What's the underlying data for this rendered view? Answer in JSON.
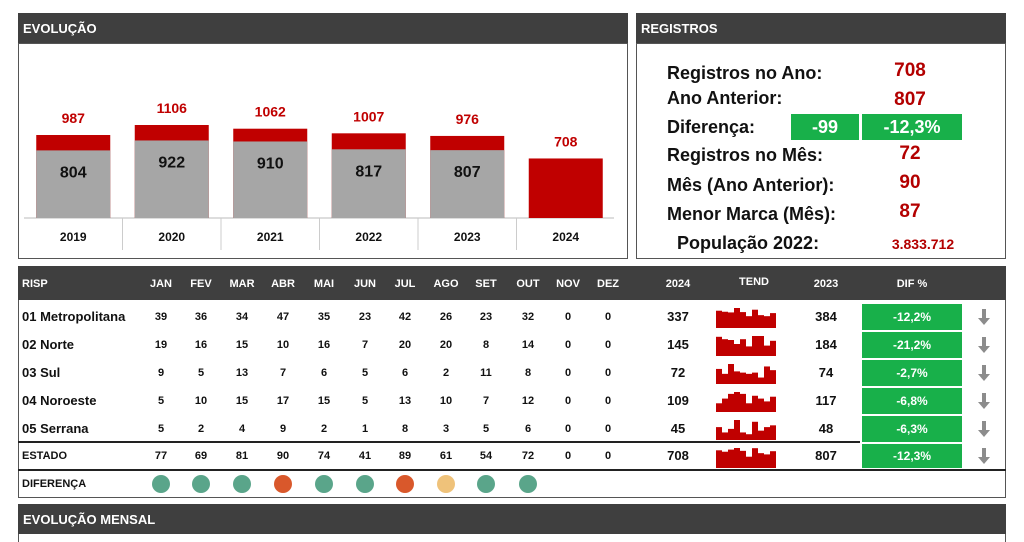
{
  "evolucao": {
    "title": "EVOLUÇÃO",
    "chart_data": {
      "type": "bar",
      "categories": [
        "2019",
        "2020",
        "2021",
        "2022",
        "2023",
        "2024"
      ],
      "series": [
        {
          "values": [
            804,
            922,
            910,
            817,
            807,
            null
          ]
        },
        {
          "values": [
            987,
            1106,
            1062,
            1007,
            976,
            708
          ]
        }
      ],
      "colors": {
        "base": "#a6a6a6",
        "top": "#c00000"
      }
    }
  },
  "registros": {
    "title": "REGISTROS",
    "rows": [
      {
        "label": "Registros no Ano:",
        "value": "708"
      },
      {
        "label": "Ano Anterior:",
        "value": "807"
      },
      {
        "label": "Diferença:",
        "value": "-99",
        "pct": "-12,3%"
      },
      {
        "label": "Registros no Mês:",
        "value": "72"
      },
      {
        "label": "Mês (Ano Anterior):",
        "value": "90"
      },
      {
        "label": "Menor Marca (Mês):",
        "value": "87"
      },
      {
        "label": "População 2022:",
        "value": "3.833.712"
      }
    ]
  },
  "table": {
    "headers": {
      "risp": "RISP",
      "months": [
        "JAN",
        "FEV",
        "MAR",
        "ABR",
        "MAI",
        "JUN",
        "JUL",
        "AGO",
        "SET",
        "OUT",
        "NOV",
        "DEZ"
      ],
      "y2024": "2024",
      "tend": "TEND",
      "y2023": "2023",
      "dif": "DIF %"
    },
    "rows": [
      {
        "name": "01 Metropolitana",
        "m": [
          "39",
          "36",
          "34",
          "47",
          "35",
          "23",
          "42",
          "26",
          "23",
          "32",
          "0",
          "0"
        ],
        "y2024": "337",
        "y2023": "384",
        "dif": "-12,2%"
      },
      {
        "name": "02 Norte",
        "m": [
          "19",
          "16",
          "15",
          "10",
          "16",
          "7",
          "20",
          "20",
          "8",
          "14",
          "0",
          "0"
        ],
        "y2024": "145",
        "y2023": "184",
        "dif": "-21,2%"
      },
      {
        "name": "03 Sul",
        "m": [
          "9",
          "5",
          "13",
          "7",
          "6",
          "5",
          "6",
          "2",
          "11",
          "8",
          "0",
          "0"
        ],
        "y2024": "72",
        "y2023": "74",
        "dif": "-2,7%"
      },
      {
        "name": "04 Noroeste",
        "m": [
          "5",
          "10",
          "15",
          "17",
          "15",
          "5",
          "13",
          "10",
          "7",
          "12",
          "0",
          "0"
        ],
        "y2024": "109",
        "y2023": "117",
        "dif": "-6,8%"
      },
      {
        "name": "05 Serrana",
        "m": [
          "5",
          "2",
          "4",
          "9",
          "2",
          "1",
          "8",
          "3",
          "5",
          "6",
          "0",
          "0"
        ],
        "y2024": "45",
        "y2023": "48",
        "dif": "-6,3%"
      }
    ],
    "estado": {
      "name": "ESTADO",
      "m": [
        "77",
        "69",
        "81",
        "90",
        "74",
        "41",
        "89",
        "61",
        "54",
        "72",
        "0",
        "0"
      ],
      "y2024": "708",
      "y2023": "807",
      "dif": "-12,3%"
    },
    "diferenca": {
      "label": "DIFERENÇA",
      "dots": [
        "#5aa58a",
        "#5aa58a",
        "#5aa58a",
        "#d9582b",
        "#5aa58a",
        "#5aa58a",
        "#d9582b",
        "#efc27a",
        "#5aa58a",
        "#5aa58a"
      ]
    }
  },
  "evolucao_mensal": {
    "title": "EVOLUÇÃO MENSAL"
  },
  "icons": {
    "trend_arrow": "arrow-down-icon"
  }
}
